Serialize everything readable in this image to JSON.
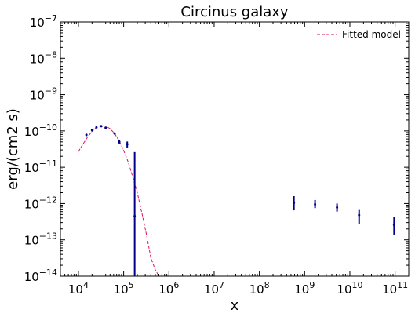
{
  "chart_data": {
    "type": "scatter",
    "title": "Circinus galaxy",
    "xlabel": "x",
    "ylabel": "erg/(cm2 s)",
    "xscale": "log",
    "yscale": "log",
    "xlim": [
      4000.0,
      200000000000.0
    ],
    "ylim": [
      1e-14,
      1e-07
    ],
    "legend": {
      "position": "top-right",
      "entries": [
        "Fitted model"
      ]
    },
    "colors": {
      "data": "#00008b",
      "model": "#e0115f"
    },
    "grid": false,
    "x_ticks": [
      {
        "value": 10000.0,
        "base": "10",
        "exp": "4"
      },
      {
        "value": 100000.0,
        "base": "10",
        "exp": "5"
      },
      {
        "value": 1000000.0,
        "base": "10",
        "exp": "6"
      },
      {
        "value": 10000000.0,
        "base": "10",
        "exp": "7"
      },
      {
        "value": 100000000.0,
        "base": "10",
        "exp": "8"
      },
      {
        "value": 1000000000.0,
        "base": "10",
        "exp": "9"
      },
      {
        "value": 10000000000.0,
        "base": "10",
        "exp": "10"
      },
      {
        "value": 100000000000.0,
        "base": "10",
        "exp": "11"
      }
    ],
    "y_ticks": [
      {
        "value": 1e-14,
        "base": "10",
        "exp": "−14"
      },
      {
        "value": 1e-13,
        "base": "10",
        "exp": "−13"
      },
      {
        "value": 1e-12,
        "base": "10",
        "exp": "−12"
      },
      {
        "value": 1e-11,
        "base": "10",
        "exp": "−11"
      },
      {
        "value": 1e-10,
        "base": "10",
        "exp": "−10"
      },
      {
        "value": 1e-09,
        "base": "10",
        "exp": "−9"
      },
      {
        "value": 1e-08,
        "base": "10",
        "exp": "−8"
      },
      {
        "value": 1e-07,
        "base": "10",
        "exp": "−7"
      }
    ],
    "series": [
      {
        "name": "Fitted model",
        "kind": "line",
        "style": "dashed",
        "x": [
          10000.0,
          13000.0,
          16000.0,
          20000.0,
          25000.0,
          30000.0,
          32000.0,
          40000.0,
          50000.0,
          63000.0,
          80000.0,
          100000.0,
          126000.0,
          158000.0,
          200000.0,
          250000.0,
          316000.0,
          400000.0,
          500000.0,
          600000.0
        ],
        "y": [
          2.7e-11,
          4.6e-11,
          6.8e-11,
          9.7e-11,
          1.25e-10,
          1.4e-10,
          1.42e-10,
          1.35e-10,
          1.15e-10,
          8.5e-11,
          5.3e-11,
          2.9e-11,
          1.4e-11,
          5.5e-12,
          2e-12,
          5.8e-13,
          1.5e-13,
          3.2e-14,
          1.5e-14,
          1e-14
        ]
      },
      {
        "kind": "errorbar",
        "points": [
          {
            "x": 15000.0,
            "y": 7.8e-11,
            "ylo": 7.2e-11,
            "yhi": 8.4e-11
          },
          {
            "x": 20000.0,
            "y": 1.05e-10,
            "ylo": 9.9e-11,
            "yhi": 1.12e-10
          },
          {
            "x": 25000.0,
            "y": 1.25e-10,
            "ylo": 1.18e-10,
            "yhi": 1.32e-10
          },
          {
            "x": 32000.0,
            "y": 1.35e-10,
            "ylo": 1.28e-10,
            "yhi": 1.42e-10
          },
          {
            "x": 40000.0,
            "y": 1.22e-10,
            "ylo": 1.15e-10,
            "yhi": 1.29e-10
          },
          {
            "x": 63000.0,
            "y": 8.5e-11,
            "ylo": 8e-11,
            "yhi": 9e-11
          },
          {
            "x": 80000.0,
            "y": 5e-11,
            "ylo": 4.5e-11,
            "yhi": 5.5e-11
          },
          {
            "x": 120000.0,
            "y": 4.3e-11,
            "ylo": 3.5e-11,
            "yhi": 5.1e-11
          },
          {
            "x": 175000.0,
            "y": 4.5e-13,
            "ylo": 1e-14,
            "yhi": 2.6e-11
          },
          {
            "x": 580000000.0,
            "y": 1.05e-12,
            "ylo": 6.5e-13,
            "yhi": 1.6e-12
          },
          {
            "x": 1700000000.0,
            "y": 9.5e-13,
            "ylo": 7.5e-13,
            "yhi": 1.25e-12
          },
          {
            "x": 5200000000.0,
            "y": 7.8e-13,
            "ylo": 6e-13,
            "yhi": 1e-12
          },
          {
            "x": 16000000000.0,
            "y": 4.8e-13,
            "ylo": 2.8e-13,
            "yhi": 7e-13
          },
          {
            "x": 95000000000.0,
            "y": 2.6e-13,
            "ylo": 1.4e-13,
            "yhi": 4.2e-13
          }
        ]
      }
    ]
  }
}
